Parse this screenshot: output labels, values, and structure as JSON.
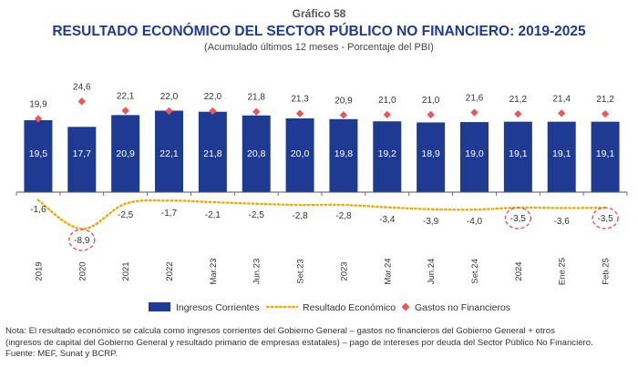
{
  "header": {
    "supertitle": "Gráfico 58",
    "title": "RESULTADO ECONÓMICO DEL SECTOR PÚBLICO NO FINANCIERO: 2019-2025",
    "subtitle": "(Acumulado últimos 12 meses - Porcentaje del PBI)"
  },
  "chart_data": {
    "type": "bar",
    "title": "RESULTADO ECONÓMICO DEL SECTOR PÚBLICO NO FINANCIERO: 2019-2025",
    "categories": [
      "2019",
      "2020",
      "2021",
      "2022",
      "Mar.23",
      "Jun.23",
      "Set.23",
      "2023",
      "Mar.24",
      "Jun.24",
      "Set.24",
      "2024",
      "Ene.25",
      "Feb.25"
    ],
    "series": [
      {
        "name": "Ingresos Corrientes",
        "kind": "bar",
        "color": "#1f3a93",
        "values": [
          19.5,
          17.7,
          20.9,
          22.1,
          21.8,
          20.8,
          20.0,
          19.8,
          19.2,
          18.9,
          19.0,
          19.1,
          19.1,
          19.1
        ],
        "labels": [
          "19,5",
          "17,7",
          "20,9",
          "22,1",
          "21,8",
          "20,8",
          "20,0",
          "19,8",
          "19,2",
          "18,9",
          "19,0",
          "19,1",
          "19,1",
          "19,1"
        ]
      },
      {
        "name": "Resultado Económico",
        "kind": "dotted-line",
        "color": "#f5a800",
        "values": [
          -1.6,
          -8.9,
          -2.5,
          -1.7,
          -2.1,
          -2.5,
          -2.8,
          -2.8,
          -3.4,
          -3.9,
          -4.0,
          -3.5,
          -3.6,
          -3.5
        ],
        "labels": [
          "-1,6",
          "-8,9",
          "-2,5",
          "-1,7",
          "-2,1",
          "-2,5",
          "-2,8",
          "-2,8",
          "-3,4",
          "-3,9",
          "-4,0",
          "-3,5",
          "-3,6",
          "-3,5"
        ]
      },
      {
        "name": "Gastos no Financieros",
        "kind": "marker",
        "color": "#e8575a",
        "values": [
          19.9,
          24.6,
          22.1,
          22.0,
          22.0,
          21.8,
          21.3,
          20.9,
          21.0,
          21.0,
          21.6,
          21.2,
          21.4,
          21.2
        ],
        "labels": [
          "19,9",
          "24,6",
          "22,1",
          "22,0",
          "22,0",
          "21,8",
          "21,3",
          "20,9",
          "21,0",
          "21,0",
          "21,6",
          "21,2",
          "21,4",
          "21,2"
        ]
      }
    ],
    "highlighted": [
      1,
      11,
      13
    ],
    "highlight_color": "#e8575a",
    "grid": false,
    "legend_position": "bottom"
  },
  "note": {
    "line1": "Nota: El resultado económico se calcula como ingresos corrientes del Gobierno General – gastos no financieros del Gobierno General + otros",
    "line2": "(ingresos de capital del Gobierno General y resultado primario de empresas estatales) – pago de intereses por deuda del Sector Público No Financiero.",
    "line3": "Fuente: MEF, Sunat y BCRP."
  }
}
